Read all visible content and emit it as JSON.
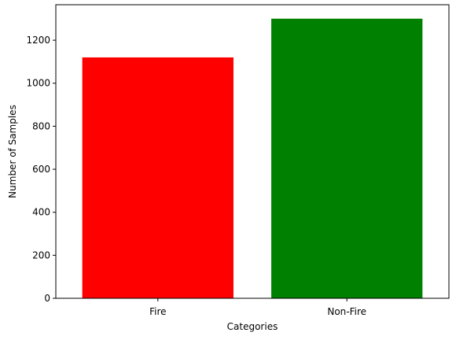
{
  "chart_data": {
    "type": "bar",
    "title": "",
    "xlabel": "Categories",
    "ylabel": "Number of Samples",
    "categories": [
      "Fire",
      "Non-Fire"
    ],
    "values": [
      1120,
      1300
    ],
    "colors": [
      "#ff0000",
      "#008000"
    ],
    "ylim": [
      0,
      1365
    ],
    "yticks": [
      0,
      200,
      400,
      600,
      800,
      1000,
      1200
    ],
    "grid": false,
    "legend": false
  }
}
